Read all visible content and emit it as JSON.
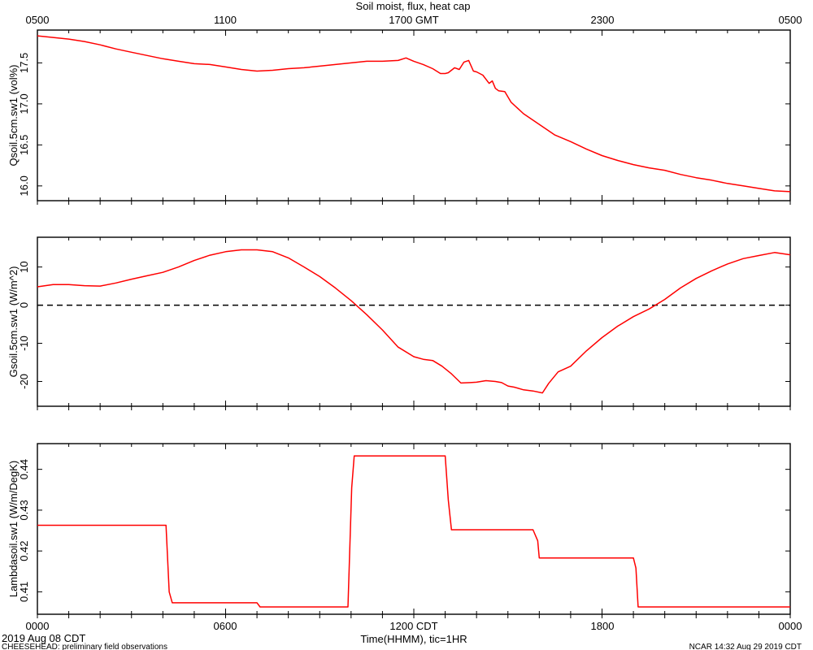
{
  "title": "Soil moist, flux, heat cap",
  "top_axis": {
    "ticks": [
      {
        "label": "0500",
        "hour": 0
      },
      {
        "label": "1100",
        "hour": 6
      },
      {
        "label": "1700 GMT",
        "hour": 12
      },
      {
        "label": "2300",
        "hour": 18
      },
      {
        "label": "0500",
        "hour": 24
      }
    ]
  },
  "bottom_axis": {
    "ticks": [
      {
        "label": "0000",
        "hour": 0
      },
      {
        "label": "0600",
        "hour": 6
      },
      {
        "label": "1200 CDT",
        "hour": 12
      },
      {
        "label": "1800",
        "hour": 18
      },
      {
        "label": "0000",
        "hour": 24
      }
    ],
    "xlabel": "Time(HHMM), tic=1HR"
  },
  "footer": {
    "date": "2019 Aug 08 CDT",
    "project": "CHEESEHEAD: preliminary field observations",
    "credit": "NCAR 14:32 Aug 29 2019 CDT"
  },
  "colors": {
    "series": "#ff0000",
    "axes": "#000000"
  },
  "chart_data": [
    {
      "type": "line",
      "ylabel": "Qsoil.5cm.sw1 (vol%)",
      "xlim": [
        0,
        24
      ],
      "ylim": [
        15.82,
        17.9
      ],
      "yticks": [
        16.0,
        16.5,
        17.0,
        17.5
      ],
      "ytick_labels": [
        "16.0",
        "16.5",
        "17.0",
        "17.5"
      ],
      "zero_line": false,
      "series": [
        {
          "x": [
            0,
            0.5,
            1,
            1.5,
            2,
            2.5,
            3,
            3.5,
            4,
            4.5,
            5,
            5.5,
            6,
            6.5,
            7,
            7.5,
            8,
            8.5,
            9,
            9.5,
            10,
            10.5,
            11,
            11.5,
            11.75,
            12,
            12.3,
            12.6,
            12.85,
            13.0,
            13.1,
            13.3,
            13.45,
            13.6,
            13.75,
            13.9,
            14.0,
            14.2,
            14.4,
            14.5,
            14.6,
            14.7,
            14.9,
            15.1,
            15.5,
            16,
            16.5,
            17,
            17.5,
            18,
            18.5,
            19,
            19.5,
            20,
            20.5,
            21,
            21.5,
            22,
            22.5,
            23,
            23.5,
            24
          ],
          "y": [
            17.83,
            17.81,
            17.79,
            17.76,
            17.72,
            17.67,
            17.63,
            17.59,
            17.55,
            17.52,
            17.49,
            17.48,
            17.45,
            17.42,
            17.4,
            17.41,
            17.43,
            17.44,
            17.46,
            17.48,
            17.5,
            17.52,
            17.52,
            17.53,
            17.56,
            17.52,
            17.48,
            17.43,
            17.37,
            17.37,
            17.38,
            17.44,
            17.42,
            17.51,
            17.53,
            17.4,
            17.39,
            17.35,
            17.25,
            17.28,
            17.19,
            17.16,
            17.15,
            17.02,
            16.88,
            16.75,
            16.62,
            16.54,
            16.45,
            16.37,
            16.31,
            16.26,
            16.22,
            16.19,
            16.14,
            16.1,
            16.07,
            16.03,
            16.0,
            15.97,
            15.94,
            15.93
          ]
        }
      ]
    },
    {
      "type": "line",
      "ylabel": "Gsoil.5cm.sw1 (W/m^2)",
      "xlim": [
        0,
        24
      ],
      "ylim": [
        -26.5,
        17.8
      ],
      "yticks": [
        -20,
        -10,
        0,
        10
      ],
      "ytick_labels": [
        "-20",
        "-10",
        "0",
        "10"
      ],
      "zero_line": true,
      "series": [
        {
          "x": [
            0,
            0.5,
            1,
            1.5,
            2,
            2.5,
            3,
            3.5,
            4,
            4.5,
            5,
            5.5,
            6,
            6.5,
            7,
            7.5,
            8,
            8.5,
            9,
            9.5,
            10,
            10.5,
            11,
            11.5,
            12,
            12.3,
            12.6,
            12.9,
            13.2,
            13.5,
            13.8,
            14.0,
            14.3,
            14.6,
            14.8,
            15.0,
            15.2,
            15.5,
            15.8,
            16.1,
            16.3,
            16.6,
            17.0,
            17.5,
            18.0,
            18.5,
            19.0,
            19.5,
            20.0,
            20.5,
            21.0,
            21.5,
            22.0,
            22.5,
            23.0,
            23.5,
            24
          ],
          "y": [
            4.8,
            5.4,
            5.4,
            5.1,
            5.0,
            5.8,
            6.8,
            7.7,
            8.6,
            10.0,
            11.7,
            13.1,
            14.0,
            14.5,
            14.5,
            14.0,
            12.4,
            10.0,
            7.5,
            4.5,
            1.2,
            -2.5,
            -6.5,
            -11.0,
            -13.5,
            -14.2,
            -14.5,
            -16.0,
            -18.0,
            -20.4,
            -20.3,
            -20.2,
            -19.8,
            -20.0,
            -20.3,
            -21.2,
            -21.5,
            -22.2,
            -22.5,
            -23.0,
            -20.5,
            -17.5,
            -16.0,
            -12.0,
            -8.5,
            -5.5,
            -3.0,
            -1.0,
            1.5,
            4.5,
            7.0,
            9.0,
            10.8,
            12.2,
            13.0,
            13.8,
            13.2
          ]
        }
      ]
    },
    {
      "type": "line",
      "ylabel": "Lambdasoil.sw1 (W/m/DegK)",
      "xlim": [
        0,
        24
      ],
      "ylim": [
        0.4045,
        0.4463
      ],
      "yticks": [
        0.41,
        0.42,
        0.43,
        0.44
      ],
      "ytick_labels": [
        "0.41",
        "0.42",
        "0.43",
        "0.44"
      ],
      "zero_line": false,
      "series": [
        {
          "x": [
            0,
            4.1,
            4.2,
            4.3,
            7.0,
            7.1,
            9.9,
            10.02,
            10.1,
            13.0,
            13.1,
            13.2,
            15.8,
            15.95,
            16.0,
            19.0,
            19.08,
            19.15,
            24
          ],
          "y": [
            0.4263,
            0.4263,
            0.41,
            0.4073,
            0.4073,
            0.4063,
            0.4063,
            0.4355,
            0.4433,
            0.4433,
            0.4325,
            0.4252,
            0.4252,
            0.4225,
            0.4183,
            0.4183,
            0.4158,
            0.4063,
            0.4063
          ]
        }
      ]
    }
  ]
}
